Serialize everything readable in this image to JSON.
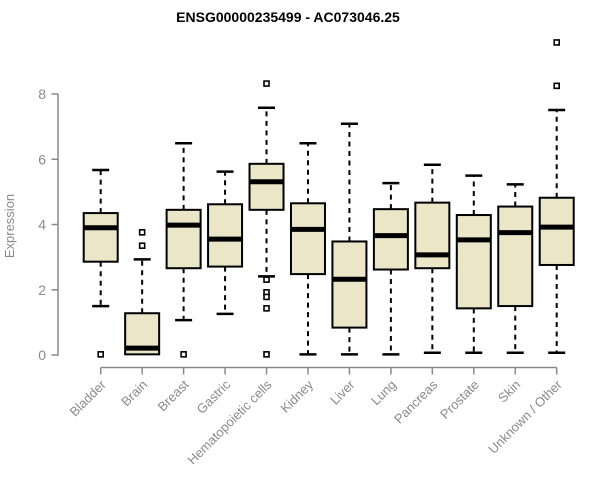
{
  "figure": {
    "background_color": "#ffffff"
  },
  "colors": {
    "box_fill": "#ece6c9",
    "box_stroke": "#000000",
    "median_color": "#000000",
    "whisker_color": "#000000",
    "outlier_stroke": "#000000",
    "outlier_fill": "#ffffff",
    "axis_color": "#8a8a8a",
    "tick_label_color": "#8a8a8a",
    "title_color": "#000000"
  },
  "chart_data": {
    "type": "boxplot",
    "title": "ENSG00000235499 - AC073046.25",
    "xlabel": "",
    "ylabel": "Expression",
    "ylim": [
      0,
      8
    ],
    "yticks": [
      0,
      2,
      4,
      6,
      8
    ],
    "grid": false,
    "legend": false,
    "categories": [
      "Bladder",
      "Brain",
      "Breast",
      "Gastric",
      "Hematopoietic cells",
      "Kidney",
      "Liver",
      "Lung",
      "Pancreas",
      "Prostate",
      "Skin",
      "Unknown / Other"
    ],
    "boxes": [
      {
        "category": "Bladder",
        "low": 1.5,
        "q1": 2.86,
        "median": 3.9,
        "q3": 4.35,
        "high": 5.67,
        "outliers": [
          0.02
        ]
      },
      {
        "category": "Brain",
        "low": 0.02,
        "q1": 0.02,
        "median": 0.21,
        "q3": 1.28,
        "high": 2.93,
        "outliers": [
          3.35,
          3.76
        ]
      },
      {
        "category": "Breast",
        "low": 1.07,
        "q1": 2.66,
        "median": 3.98,
        "q3": 4.45,
        "high": 6.49,
        "outliers": [
          0.02
        ]
      },
      {
        "category": "Gastric",
        "low": 1.26,
        "q1": 2.71,
        "median": 3.55,
        "q3": 4.62,
        "high": 5.62,
        "outliers": []
      },
      {
        "category": "Hematopoietic cells",
        "low": 2.41,
        "q1": 4.45,
        "median": 5.31,
        "q3": 5.86,
        "high": 7.58,
        "outliers": [
          8.32,
          2.31,
          1.92,
          1.78,
          1.43,
          0.02
        ]
      },
      {
        "category": "Kidney",
        "low": 0.02,
        "q1": 2.48,
        "median": 3.85,
        "q3": 4.65,
        "high": 6.49,
        "outliers": []
      },
      {
        "category": "Liver",
        "low": 0.02,
        "q1": 0.84,
        "median": 2.32,
        "q3": 3.48,
        "high": 7.09,
        "outliers": []
      },
      {
        "category": "Lung",
        "low": 0.02,
        "q1": 2.62,
        "median": 3.66,
        "q3": 4.47,
        "high": 5.27,
        "outliers": []
      },
      {
        "category": "Pancreas",
        "low": 0.07,
        "q1": 2.66,
        "median": 3.07,
        "q3": 4.67,
        "high": 5.83,
        "outliers": []
      },
      {
        "category": "Prostate",
        "low": 0.07,
        "q1": 1.43,
        "median": 3.53,
        "q3": 4.29,
        "high": 5.5,
        "outliers": []
      },
      {
        "category": "Skin",
        "low": 0.07,
        "q1": 1.5,
        "median": 3.75,
        "q3": 4.55,
        "high": 5.23,
        "outliers": []
      },
      {
        "category": "Unknown / Other",
        "low": 0.07,
        "q1": 2.76,
        "median": 3.92,
        "q3": 4.82,
        "high": 7.51,
        "outliers": [
          8.25,
          9.58
        ]
      }
    ]
  }
}
